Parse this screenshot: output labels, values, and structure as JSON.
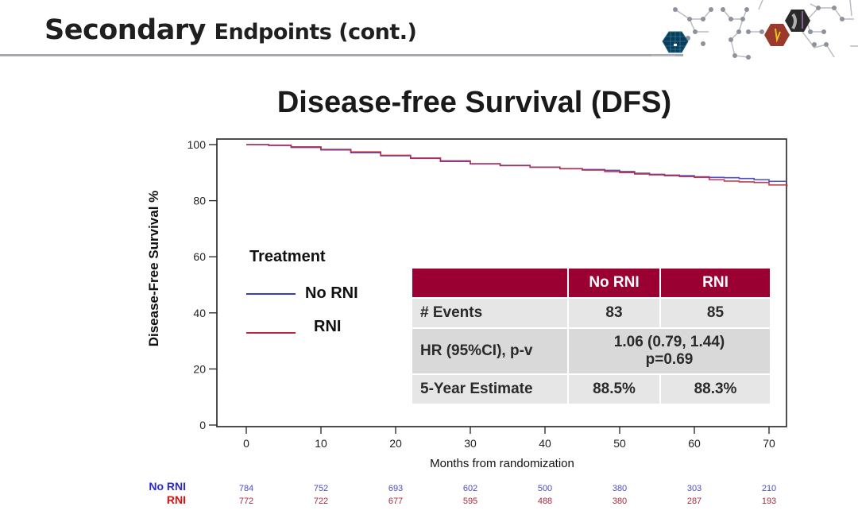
{
  "slide": {
    "title_main": "Secondary",
    "title_rest": "Endpoints (cont.)",
    "decoration": "hexagon-molecule-graphic"
  },
  "colors": {
    "no_rni": "#3a3ac8",
    "rni": "#c0283c",
    "table_header": "#9a0032",
    "risk_no_rni": "#4b4bc4",
    "risk_rni": "#a8283c",
    "risk_label_no_rni": "#2a2ad0",
    "risk_label_rni": "#e01010"
  },
  "chart_data": {
    "type": "line",
    "title": "Disease-free Survival (DFS)",
    "xlabel": "Months from randomization",
    "ylabel": "Disease-Free Survival %",
    "xlim": [
      -4,
      72.5
    ],
    "ylim": [
      -0.5,
      102
    ],
    "xticks": [
      0,
      10,
      20,
      30,
      40,
      50,
      60,
      70
    ],
    "yticks": [
      0,
      20,
      40,
      60,
      80,
      100
    ],
    "grid": false,
    "legend": {
      "title": "Treatment",
      "placement": "center-left",
      "entries": [
        "No RNI",
        "RNI"
      ]
    },
    "series": [
      {
        "name": "No RNI",
        "x": [
          0,
          3,
          6,
          10,
          14,
          18,
          22,
          26,
          30,
          34,
          38,
          42,
          45,
          48,
          50,
          52,
          54,
          56,
          58,
          60,
          62,
          64,
          66,
          68,
          70,
          72.4
        ],
        "y": [
          100,
          99.7,
          99.0,
          98.1,
          97.1,
          96.0,
          95.1,
          94.0,
          93.1,
          92.5,
          91.9,
          91.4,
          91.1,
          90.8,
          90.4,
          89.8,
          89.4,
          89.1,
          88.9,
          88.5,
          88.3,
          88.2,
          87.9,
          87.5,
          86.9,
          86.9
        ]
      },
      {
        "name": "RNI",
        "x": [
          0,
          3,
          6,
          10,
          14,
          18,
          22,
          26,
          30,
          34,
          38,
          42,
          45,
          48,
          50,
          52,
          54,
          56,
          58,
          60,
          62,
          64,
          66,
          68,
          70,
          72.4
        ],
        "y": [
          100,
          99.8,
          99.2,
          98.3,
          97.4,
          96.2,
          95.2,
          94.2,
          93.2,
          92.6,
          92.0,
          91.4,
          90.9,
          90.4,
          90.0,
          89.5,
          89.2,
          88.9,
          88.6,
          88.3,
          87.5,
          87.0,
          86.7,
          86.5,
          85.6,
          85.0
        ]
      }
    ],
    "numbers_at_risk": {
      "times": [
        0,
        10,
        20,
        30,
        40,
        50,
        60,
        70
      ],
      "rows": [
        {
          "label": "No RNI",
          "values": [
            784,
            752,
            693,
            602,
            500,
            380,
            303,
            210
          ]
        },
        {
          "label": "RNI",
          "values": [
            772,
            722,
            677,
            595,
            488,
            380,
            287,
            193
          ]
        }
      ]
    },
    "summary_table": {
      "columns": [
        "",
        "No RNI",
        "RNI"
      ],
      "rows": [
        {
          "label": "# Events",
          "no_rni": "83",
          "rni": "85"
        },
        {
          "label": "HR (95%CI), p-v",
          "merged_line1": "1.06 (0.79, 1.44)",
          "merged_line2": "p=0.69"
        },
        {
          "label": "5-Year Estimate",
          "no_rni": "88.5%",
          "rni": "88.3%"
        }
      ]
    }
  }
}
